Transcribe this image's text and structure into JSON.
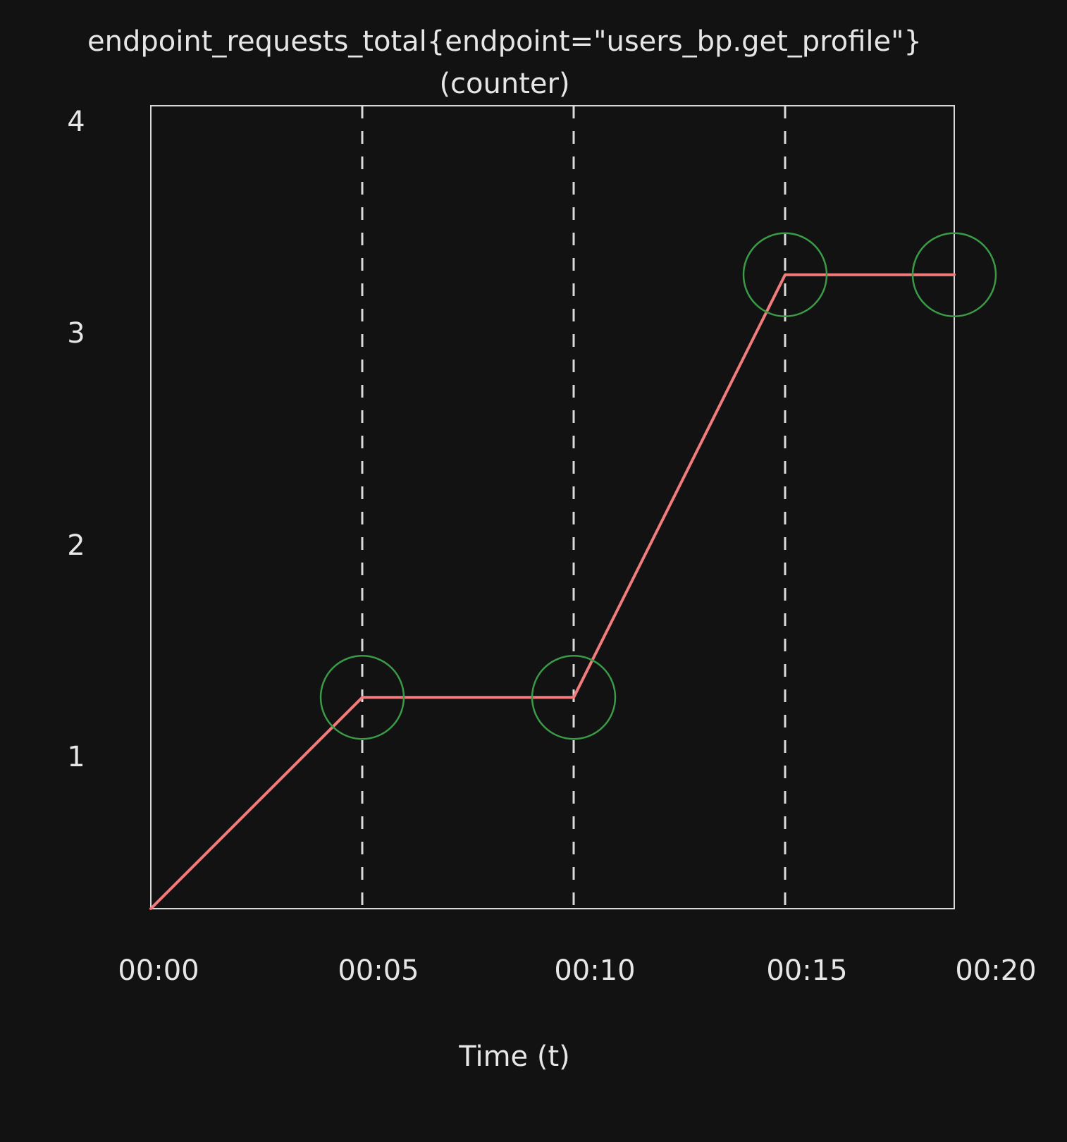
{
  "chart_data": {
    "type": "line",
    "title": "endpoint_requests_total{endpoint=\"users_bp.get_profile\"}",
    "subtitle": "(counter)",
    "xlabel": "Time (t)",
    "ylabel": "",
    "x_ticks": [
      "00:00",
      "00:05",
      "00:10",
      "00:15",
      "00:20"
    ],
    "y_ticks": [
      1,
      2,
      3,
      4
    ],
    "xlim": [
      0,
      19
    ],
    "ylim": [
      0,
      3.8
    ],
    "grid": "vertical-dashed",
    "series": [
      {
        "points": [
          {
            "x": 0,
            "y": 0
          },
          {
            "x": 5,
            "y": 1
          },
          {
            "x": 10,
            "y": 1
          },
          {
            "x": 15,
            "y": 3
          },
          {
            "x": 19,
            "y": 3
          }
        ]
      }
    ],
    "highlighted_points": [
      {
        "x": 5,
        "y": 1
      },
      {
        "x": 10,
        "y": 1
      },
      {
        "x": 15,
        "y": 3
      },
      {
        "x": 19,
        "y": 3
      }
    ],
    "colors": {
      "background": "#121212",
      "axes": "#d9d9d9",
      "line": "#f07c7c",
      "highlight": "#3a9a47",
      "text": "#e6e6e6"
    }
  }
}
